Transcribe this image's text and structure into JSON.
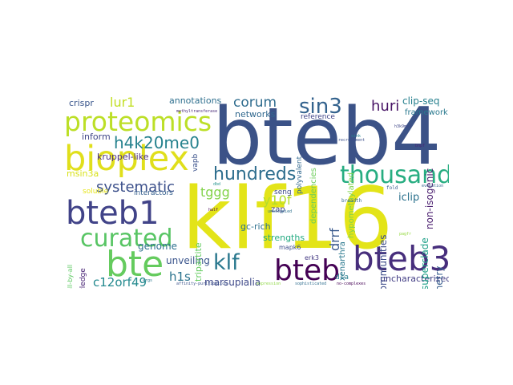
{
  "words": [
    {
      "text": "klf16",
      "color": "#e3e418"
    },
    {
      "text": "bteb4",
      "color": "#3b5287"
    },
    {
      "text": "bioplex",
      "color": "#e0df1b"
    },
    {
      "text": "proteomics",
      "color": "#bcdf27"
    },
    {
      "text": "bteb1",
      "color": "#414388"
    },
    {
      "text": "thousands",
      "color": "#27ad81"
    },
    {
      "text": "curated",
      "color": "#58c564"
    },
    {
      "text": "bteb3",
      "color": "#472e7c"
    },
    {
      "text": "bte",
      "color": "#65cb5e"
    },
    {
      "text": "bteb",
      "color": "#440154"
    },
    {
      "text": "hundreds",
      "color": "#2e6e8e"
    },
    {
      "text": "sin3",
      "color": "#33628d"
    },
    {
      "text": "klf",
      "color": "#2a788e"
    },
    {
      "text": "h4k20me0",
      "color": "#26828e"
    },
    {
      "text": "systematic",
      "color": "#3c508b"
    },
    {
      "text": "corum",
      "color": "#2f6c8e"
    },
    {
      "text": "huri",
      "color": "#471365"
    },
    {
      "text": "lur1",
      "color": "#c2df23"
    },
    {
      "text": "c12orf49",
      "color": "#23898e"
    },
    {
      "text": "y10f",
      "color": "#b2dd2d"
    },
    {
      "text": "tggg",
      "color": "#83d34b"
    },
    {
      "text": "h1s",
      "color": "#2c738e"
    },
    {
      "text": "marsupialia",
      "color": "#3e4989"
    },
    {
      "text": "unveiling",
      "color": "#3a548c"
    },
    {
      "text": "annotations",
      "color": "#2e6f8e"
    },
    {
      "text": "crispr",
      "color": "#39558c"
    },
    {
      "text": "inform",
      "color": "#404688"
    },
    {
      "text": "kruppel-like",
      "color": "#4b2d80"
    },
    {
      "text": "msin3a",
      "color": "#d8e219"
    },
    {
      "text": "soluble",
      "color": "#e5e419"
    },
    {
      "text": "interactors",
      "color": "#355f8d"
    },
    {
      "text": "genome",
      "color": "#2d708e"
    },
    {
      "text": "networks",
      "color": "#31688e"
    },
    {
      "text": "reference",
      "color": "#414487"
    },
    {
      "text": "gc-rich",
      "color": "#2d708e"
    },
    {
      "text": "seng",
      "color": "#3e4a89"
    },
    {
      "text": "zap",
      "color": "#424086"
    },
    {
      "text": "strengths",
      "color": "#25ab82"
    },
    {
      "text": "mapk6",
      "color": "#3d4e8a"
    },
    {
      "text": "erk3",
      "color": "#443983"
    },
    {
      "text": "d1a",
      "color": "#277f8e"
    },
    {
      "text": "iclip",
      "color": "#2c728e"
    },
    {
      "text": "clip-seq",
      "color": "#27808e"
    },
    {
      "text": "framework",
      "color": "#29798e"
    },
    {
      "text": "uncharacterized",
      "color": "#433e85"
    },
    {
      "text": "communities",
      "color": "#3e4c8a"
    },
    {
      "text": "vapb",
      "color": "#3b528b"
    },
    {
      "text": "drrf",
      "color": "#38588c"
    },
    {
      "text": "superclade",
      "color": "#1fa088"
    },
    {
      "text": "spectrometry",
      "color": "#365c8d"
    },
    {
      "text": "non-isogenic",
      "color": "#481b6d"
    },
    {
      "text": "xenarthra",
      "color": "#2a788e"
    },
    {
      "text": "dependencies",
      "color": "#6ccd5a"
    },
    {
      "text": "hypomethylated",
      "color": "#7fd34e"
    },
    {
      "text": "polyvalent",
      "color": "#31688e"
    },
    {
      "text": "tripartite",
      "color": "#63cb5f"
    },
    {
      "text": "knowledge",
      "color": "#482475"
    },
    {
      "text": "all-by-all",
      "color": "#5ec962"
    },
    {
      "text": "recruitment",
      "color": "#3c4f8a"
    },
    {
      "text": "methyltransferase",
      "color": "#482878"
    },
    {
      "text": "unoccupied",
      "color": "#2d708e"
    },
    {
      "text": "affinity-purification",
      "color": "#3b528b"
    },
    {
      "text": "sophisticated",
      "color": "#2e6e8e"
    },
    {
      "text": "no-complexes",
      "color": "#440154"
    },
    {
      "text": "breadth",
      "color": "#31688e"
    },
    {
      "text": "expression",
      "color": "#8fd744"
    },
    {
      "text": "fold",
      "color": "#365d8d"
    },
    {
      "text": "ergs",
      "color": "#2a788e"
    },
    {
      "text": "half",
      "color": "#440154"
    },
    {
      "text": "evolution",
      "color": "#34618d"
    },
    {
      "text": "pagfr",
      "color": "#95d840"
    },
    {
      "text": "dbd",
      "color": "#21918c"
    },
    {
      "text": "h3k9me3",
      "color": "#3f4788"
    },
    {
      "text": "sink",
      "color": "#25848e"
    },
    {
      "text": "bnpf",
      "color": "#482576"
    }
  ]
}
